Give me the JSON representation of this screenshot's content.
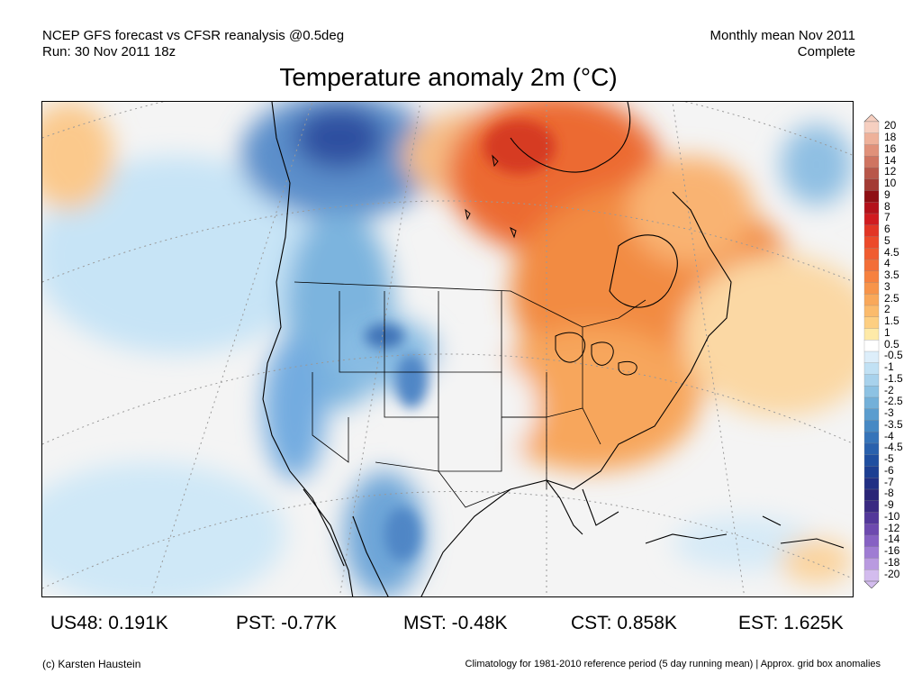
{
  "header": {
    "line1_left": "NCEP GFS forecast vs CFSR reanalysis @0.5deg",
    "line2_left": "Run: 30 Nov 2011 18z",
    "line1_right": "Monthly mean Nov 2011",
    "line2_right": "Complete"
  },
  "title": "Temperature anomaly 2m (°C)",
  "colorbar": {
    "labels": [
      "20",
      "18",
      "16",
      "14",
      "12",
      "10",
      "9",
      "8",
      "7",
      "6",
      "5",
      "4.5",
      "4",
      "3.5",
      "3",
      "2.5",
      "2",
      "1.5",
      "1",
      "0.5",
      "-0.5",
      "-1",
      "-1.5",
      "-2",
      "-2.5",
      "-3",
      "-3.5",
      "-4",
      "-4.5",
      "-5",
      "-6",
      "-7",
      "-8",
      "-9",
      "-10",
      "-12",
      "-14",
      "-16",
      "-18",
      "-20"
    ],
    "colors": [
      "#f6cfc0",
      "#eeb19a",
      "#e0917a",
      "#cf7461",
      "#b8574a",
      "#a33b34",
      "#8e0f14",
      "#b3121b",
      "#d01b20",
      "#e23525",
      "#ec4a2a",
      "#f05c30",
      "#f36e37",
      "#f6813f",
      "#f7944a",
      "#f9a85a",
      "#fbbb6c",
      "#fdcf82",
      "#feeaa8",
      "#ffffff",
      "#ddeefa",
      "#c1e1f4",
      "#a8d2ec",
      "#8dc2e3",
      "#73b0d9",
      "#5b9dcf",
      "#4789c4",
      "#3674b9",
      "#2961ad",
      "#1f4fa0",
      "#1d3f92",
      "#212f84",
      "#2a2577",
      "#3a2a82",
      "#53389a",
      "#6d4aaf",
      "#8661c3",
      "#9f7cd3",
      "#b99ae0",
      "#d3bcee"
    ]
  },
  "stats": [
    {
      "label": "US48: 0.191K"
    },
    {
      "label": "PST: -0.77K"
    },
    {
      "label": "MST: -0.48K"
    },
    {
      "label": "CST: 0.858K"
    },
    {
      "label": "EST: 1.625K"
    }
  ],
  "footer": {
    "left": "(c) Karsten Haustein",
    "right": "Climatology for 1981-2010 reference period (5 day running mean) | Approx. grid box anomalies"
  }
}
